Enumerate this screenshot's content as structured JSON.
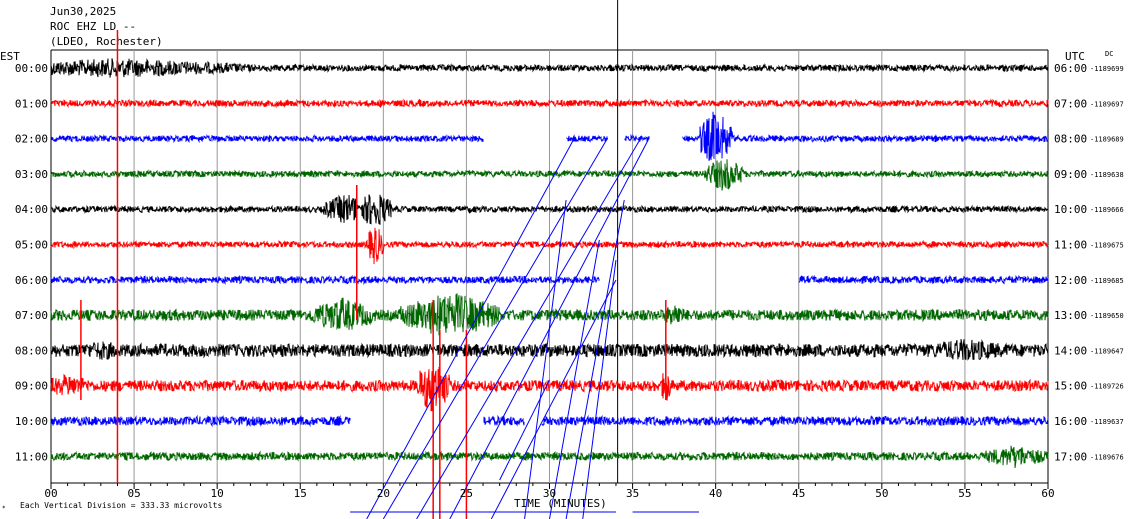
{
  "header": {
    "date": "Jun30,2025",
    "station": "ROC EHZ LD --",
    "network": "(LDEO, Rochester)"
  },
  "labels": {
    "left_zone": "EST",
    "right_zone": "UTC",
    "dc": "DC",
    "xlabel": "TIME (MINUTES)",
    "scale_note": "Each Vertical Division =  333.33 microvolts"
  },
  "chart_data": {
    "type": "line",
    "title": "",
    "xlabel": "TIME (MINUTES)",
    "ylabel": "",
    "xlim": [
      0,
      60
    ],
    "x_ticks": [
      "00",
      "05",
      "10",
      "15",
      "20",
      "25",
      "30",
      "35",
      "40",
      "45",
      "50",
      "55",
      "60"
    ],
    "trace_colors": [
      "#000000",
      "#ff0000",
      "#0000ff",
      "#006600"
    ],
    "grid": true,
    "rows": [
      {
        "est": "00:00",
        "utc": "06:00",
        "dc": "-1189699",
        "gaps": [],
        "events": [
          [
            4,
            8,
            10
          ]
        ]
      },
      {
        "est": "01:00",
        "utc": "07:00",
        "dc": "-1189697",
        "gaps": [],
        "events": []
      },
      {
        "est": "02:00",
        "utc": "08:00",
        "dc": "-1189689",
        "gaps": [
          [
            26,
            31
          ],
          [
            33.5,
            34.5
          ],
          [
            36,
            38
          ]
        ],
        "events": [
          [
            40,
            1,
            30
          ]
        ]
      },
      {
        "est": "03:00",
        "utc": "09:00",
        "dc": "-1189638",
        "gaps": [],
        "events": [
          [
            40.5,
            1.2,
            18
          ]
        ]
      },
      {
        "est": "04:00",
        "utc": "10:00",
        "dc": "-1189666",
        "gaps": [],
        "events": [
          [
            17.8,
            1.4,
            16
          ],
          [
            19.5,
            1,
            20
          ]
        ]
      },
      {
        "est": "05:00",
        "utc": "11:00",
        "dc": "-1189675",
        "gaps": [],
        "events": [
          [
            19.5,
            0.5,
            22
          ]
        ]
      },
      {
        "est": "06:00",
        "utc": "12:00",
        "dc": "-1189685",
        "gaps": [
          [
            33,
            45
          ]
        ],
        "events": []
      },
      {
        "est": "07:00",
        "utc": "13:00",
        "dc": "-1189650",
        "gaps": [],
        "events": [
          [
            17.5,
            2,
            18
          ],
          [
            24,
            3,
            24
          ],
          [
            37.5,
            0.6,
            14
          ]
        ]
      },
      {
        "est": "08:00",
        "utc": "14:00",
        "dc": "-1189647",
        "gaps": [],
        "events": [
          [
            3,
            2,
            10
          ],
          [
            55,
            3,
            12
          ]
        ]
      },
      {
        "est": "09:00",
        "utc": "15:00",
        "dc": "-1189726",
        "gaps": [],
        "events": [
          [
            23,
            1,
            30
          ],
          [
            37,
            0.3,
            20
          ],
          [
            1,
            1.5,
            12
          ]
        ]
      },
      {
        "est": "10:00",
        "utc": "16:00",
        "dc": "-1189637",
        "gaps": [
          [
            18,
            26
          ],
          [
            28.5,
            29.5
          ]
        ],
        "events": []
      },
      {
        "est": "11:00",
        "utc": "17:00",
        "dc": "-1189676",
        "gaps": [],
        "events": [
          [
            58,
            2,
            12
          ]
        ]
      }
    ]
  }
}
